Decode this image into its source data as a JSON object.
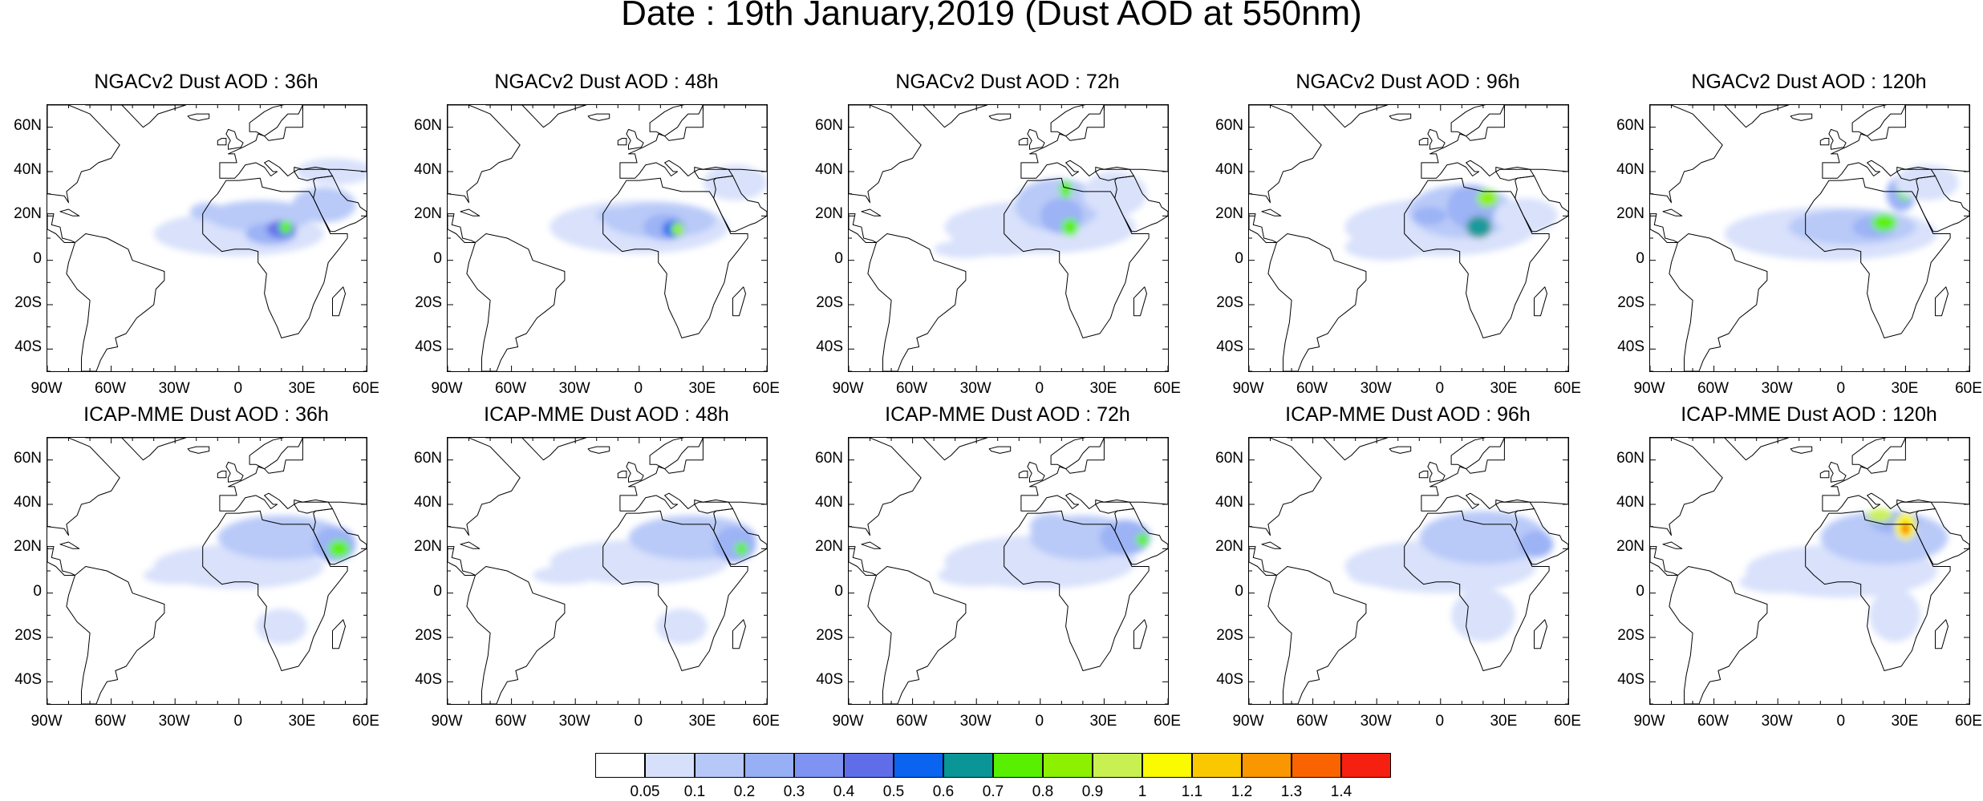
{
  "main_title": "Date : 19th January,2019 (Dust AOD at 550nm)",
  "rows": [
    {
      "model": "NGACv2",
      "panels": [
        {
          "title": "NGACv2 Dust AOD : 36h",
          "lead": "36h"
        },
        {
          "title": "NGACv2 Dust AOD : 48h",
          "lead": "48h"
        },
        {
          "title": "NGACv2 Dust AOD : 72h",
          "lead": "72h"
        },
        {
          "title": "NGACv2 Dust AOD : 96h",
          "lead": "96h"
        },
        {
          "title": "NGACv2 Dust AOD : 120h",
          "lead": "120h"
        }
      ]
    },
    {
      "model": "ICAP-MME",
      "panels": [
        {
          "title": "ICAP-MME Dust AOD : 36h",
          "lead": "36h"
        },
        {
          "title": "ICAP-MME Dust AOD : 48h",
          "lead": "48h"
        },
        {
          "title": "ICAP-MME Dust AOD : 72h",
          "lead": "72h"
        },
        {
          "title": "ICAP-MME Dust AOD : 96h",
          "lead": "96h"
        },
        {
          "title": "ICAP-MME Dust AOD : 120h",
          "lead": "120h"
        }
      ]
    }
  ],
  "map_extent": {
    "lon": [
      -90,
      60
    ],
    "lat": [
      -50,
      70
    ]
  },
  "lat_ticks": [
    "60N",
    "40N",
    "20N",
    "0",
    "20S",
    "40S"
  ],
  "lon_ticks": [
    "90W",
    "60W",
    "30W",
    "0",
    "30E",
    "60E"
  ],
  "colorbar": {
    "labels": [
      "0.05",
      "0.1",
      "0.2",
      "0.3",
      "0.4",
      "0.5",
      "0.6",
      "0.7",
      "0.8",
      "0.9",
      "1",
      "1.1",
      "1.2",
      "1.3",
      "1.4"
    ],
    "colors": [
      "#ffffff",
      "#d7e0fb",
      "#b6c8f8",
      "#97aff5",
      "#7f93f2",
      "#5f6ee8",
      "#0a64f0",
      "#0a9696",
      "#58f000",
      "#8cf000",
      "#c8f050",
      "#fafa00",
      "#fac800",
      "#fa9600",
      "#fa6400",
      "#f52010"
    ]
  }
}
